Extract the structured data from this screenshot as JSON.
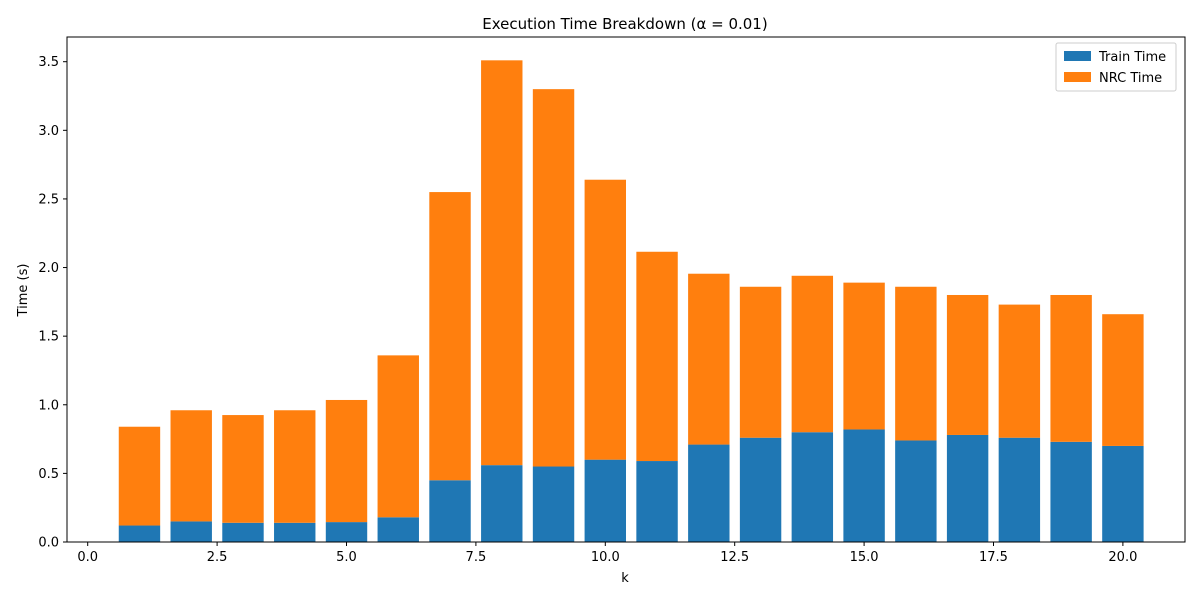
{
  "chart_data": {
    "type": "bar",
    "stacked": true,
    "title": "Execution Time Breakdown (α = 0.01)",
    "xlabel": "k",
    "ylabel": "Time (s)",
    "x": [
      1,
      2,
      3,
      4,
      5,
      6,
      7,
      8,
      9,
      10,
      11,
      12,
      13,
      14,
      15,
      16,
      17,
      18,
      19,
      20
    ],
    "series": [
      {
        "name": "Train Time",
        "color": "#1f77b4",
        "values": [
          0.12,
          0.15,
          0.14,
          0.14,
          0.145,
          0.18,
          0.45,
          0.56,
          0.55,
          0.6,
          0.59,
          0.71,
          0.76,
          0.8,
          0.82,
          0.74,
          0.78,
          0.76,
          0.73,
          0.7
        ]
      },
      {
        "name": "NRC Time",
        "color": "#ff7f0e",
        "values": [
          0.72,
          0.81,
          0.785,
          0.82,
          0.89,
          1.18,
          2.1,
          2.95,
          2.75,
          2.04,
          1.525,
          1.245,
          1.1,
          1.14,
          1.07,
          1.12,
          1.02,
          0.97,
          1.07,
          0.96
        ]
      }
    ],
    "xlim": [
      -0.4,
      21.2
    ],
    "ylim": [
      0,
      3.68
    ],
    "xticks": [
      "0.0",
      "2.5",
      "5.0",
      "7.5",
      "10.0",
      "12.5",
      "15.0",
      "17.5",
      "20.0"
    ],
    "yticks": [
      "0.0",
      "0.5",
      "1.0",
      "1.5",
      "2.0",
      "2.5",
      "3.0",
      "3.5"
    ],
    "legend_position": "top-right",
    "grid": false
  }
}
